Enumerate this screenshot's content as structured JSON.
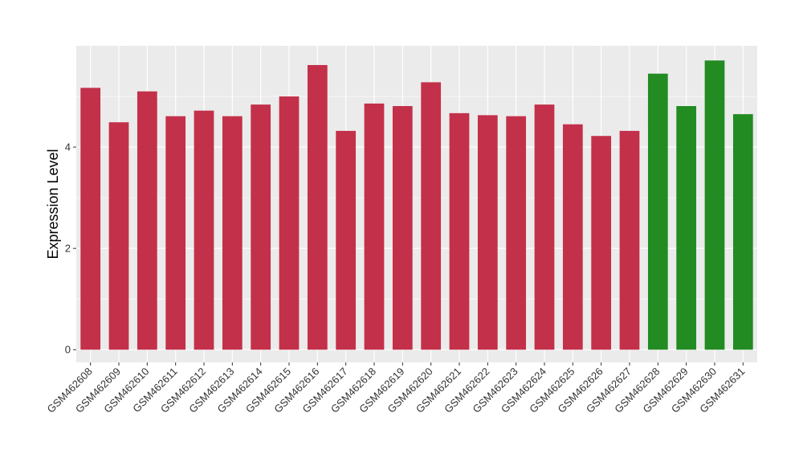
{
  "chart_data": {
    "type": "bar",
    "title": "",
    "xlabel": "",
    "ylabel": "Expression Level",
    "ylim": [
      -0.25,
      6.0
    ],
    "yticks": [
      0,
      2,
      4
    ],
    "grid": true,
    "panel_background": "#ebebeb",
    "grid_color": "#ffffff",
    "categories": [
      "GSM462608",
      "GSM462609",
      "GSM462610",
      "GSM462611",
      "GSM462612",
      "GSM462613",
      "GSM462614",
      "GSM462615",
      "GSM462616",
      "GSM462617",
      "GSM462618",
      "GSM462619",
      "GSM462620",
      "GSM462621",
      "GSM462622",
      "GSM462623",
      "GSM462624",
      "GSM462625",
      "GSM462626",
      "GSM462627",
      "GSM462628",
      "GSM462629",
      "GSM462630",
      "GSM462631"
    ],
    "values": [
      5.17,
      4.49,
      5.1,
      4.61,
      4.72,
      4.61,
      4.84,
      5.0,
      5.62,
      4.32,
      4.86,
      4.81,
      5.28,
      4.67,
      4.63,
      4.61,
      4.84,
      4.45,
      4.22,
      4.32,
      5.45,
      4.81,
      5.71,
      4.65
    ],
    "colors": [
      "#c3304a",
      "#c3304a",
      "#c3304a",
      "#c3304a",
      "#c3304a",
      "#c3304a",
      "#c3304a",
      "#c3304a",
      "#c3304a",
      "#c3304a",
      "#c3304a",
      "#c3304a",
      "#c3304a",
      "#c3304a",
      "#c3304a",
      "#c3304a",
      "#c3304a",
      "#c3304a",
      "#c3304a",
      "#c3304a",
      "#228b22",
      "#228b22",
      "#228b22",
      "#228b22"
    ]
  }
}
